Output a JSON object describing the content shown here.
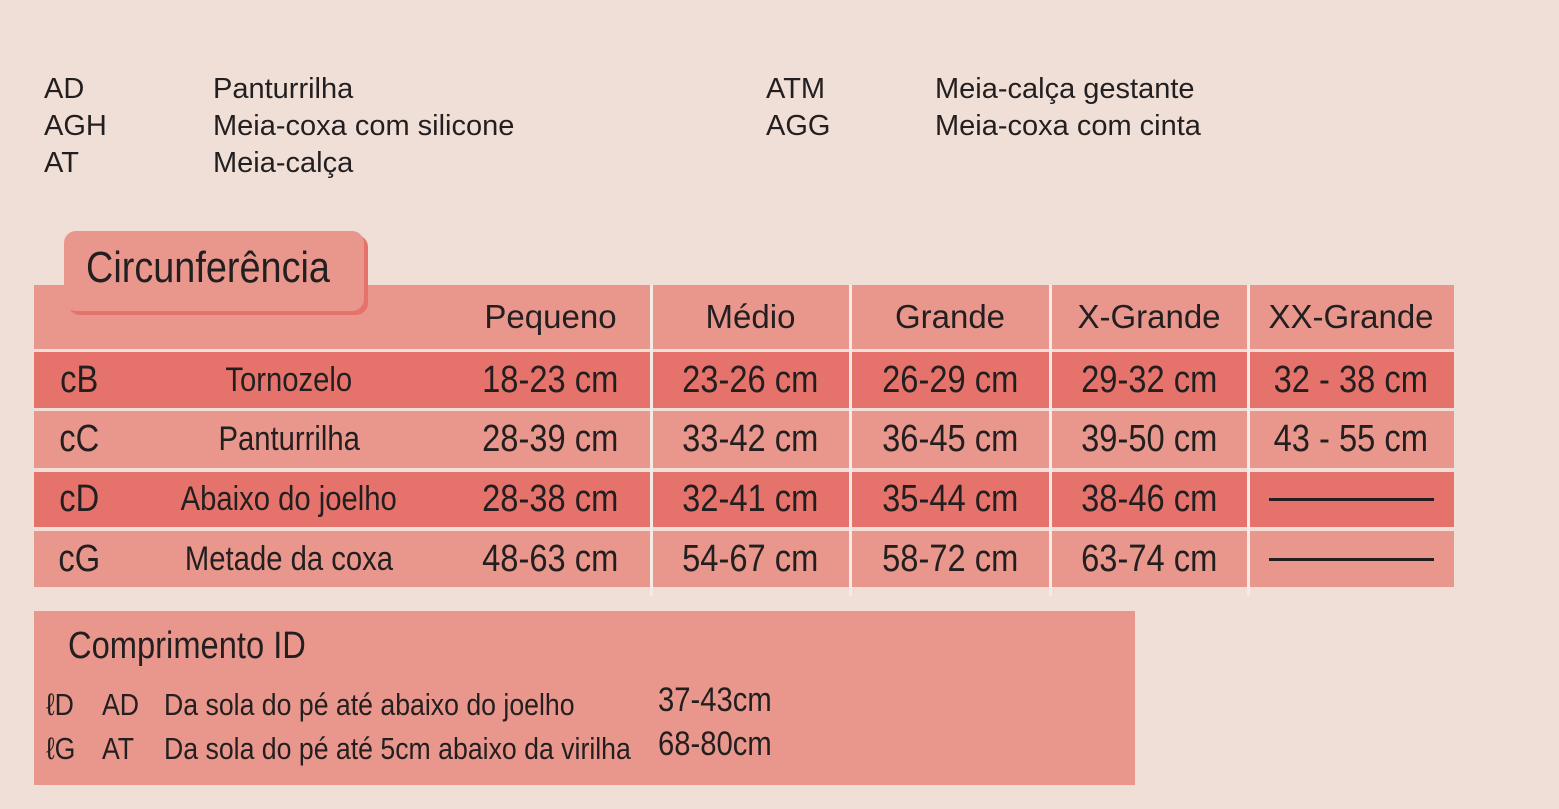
{
  "legend": [
    {
      "code": "AD",
      "label": "Panturrilha"
    },
    {
      "code": "AGH",
      "label": "Meia-coxa com silicone"
    },
    {
      "code": "AT",
      "label": "Meia-calça"
    },
    {
      "code": "ATM",
      "label": "Meia-calça gestante"
    },
    {
      "code": "AGG",
      "label": "Meia-coxa com cinta"
    }
  ],
  "circumference": {
    "title": "Circunferência",
    "headers": [
      "Pequeno",
      "Médio",
      "Grande",
      "X-Grande",
      "XX-Grande"
    ],
    "rows": [
      {
        "code": "cB",
        "name": "Tornozelo",
        "values": [
          "18-23 cm",
          "23-26 cm",
          "26-29 cm",
          "29-32 cm",
          "32 - 38 cm"
        ]
      },
      {
        "code": "cC",
        "name": "Panturrilha",
        "values": [
          "28-39 cm",
          "33-42 cm",
          "36-45 cm",
          "39-50 cm",
          "43 - 55 cm"
        ]
      },
      {
        "code": "cD",
        "name": "Abaixo do joelho",
        "values": [
          "28-38 cm",
          "32-41 cm",
          "35-44 cm",
          "38-46 cm",
          null
        ]
      },
      {
        "code": "cG",
        "name": "Metade da coxa",
        "values": [
          "48-63 cm",
          "54-67 cm",
          "58-72 cm",
          "63-74 cm",
          null
        ]
      }
    ]
  },
  "length": {
    "title": "Comprimento ID",
    "rows": [
      {
        "code": "ℓD",
        "model": "AD",
        "description": "Da sola do pé até abaixo do joelho",
        "value": "37-43cm"
      },
      {
        "code": "ℓG",
        "model": "AT",
        "description": "Da sola do pé até 5cm abaixo da virilha",
        "value": "68-80cm"
      }
    ]
  },
  "colors": {
    "background": "#f0dfd6",
    "row_light": "#e9978c",
    "row_dark": "#e5736b"
  }
}
